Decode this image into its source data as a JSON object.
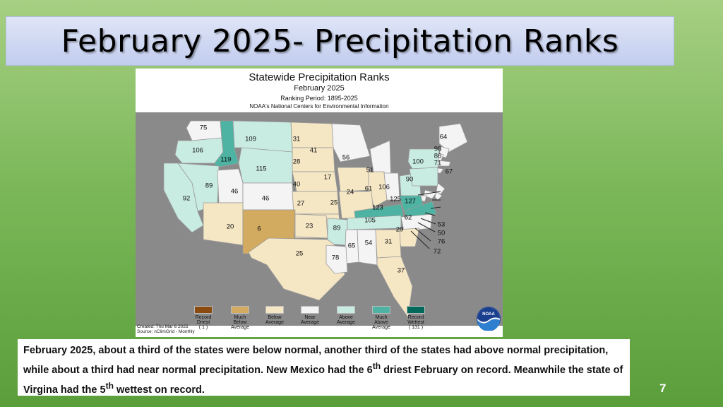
{
  "slide": {
    "title": "February 2025- Precipitation Ranks",
    "page_number": "7"
  },
  "map": {
    "title": "Statewide Precipitation Ranks",
    "subtitle": "February 2025",
    "period": "Ranking Period: 1895-2025",
    "source_line": "NOAA's National Centers for Environmental Information",
    "created": "Created: Thu Mar  6 2025",
    "source": "Source: nClimGrid - Monthly",
    "colors": {
      "record_driest": "#8b4a10",
      "much_below": "#d2aa60",
      "below": "#f5e6c4",
      "near": "#f4f4f4",
      "above": "#c9ece2",
      "much_above": "#4eb3a2",
      "record_wettest": "#00695c",
      "background": "#8a8a8a"
    },
    "legend": [
      {
        "label": "Record Driest",
        "sub": "( 1 )",
        "color": "#8b4a10"
      },
      {
        "label": "Much Below Average",
        "sub": "",
        "color": "#d2aa60"
      },
      {
        "label": "Below Average",
        "sub": "",
        "color": "#f5e6c4"
      },
      {
        "label": "Near Average",
        "sub": "",
        "color": "#f4f4f4"
      },
      {
        "label": "Above Average",
        "sub": "",
        "color": "#c9ece2"
      },
      {
        "label": "Much Above Average",
        "sub": "",
        "color": "#4eb3a2"
      },
      {
        "label": "Record Wettest",
        "sub": "( 131 )",
        "color": "#00695c"
      }
    ],
    "states": [
      {
        "label": "75",
        "category": "near"
      },
      {
        "label": "106",
        "category": "above"
      },
      {
        "label": "119",
        "category": "much_above"
      },
      {
        "label": "109",
        "category": "above"
      },
      {
        "label": "31",
        "category": "below"
      },
      {
        "label": "41",
        "category": "below"
      },
      {
        "label": "28",
        "category": "below"
      },
      {
        "label": "115",
        "category": "above"
      },
      {
        "label": "56",
        "category": "near"
      },
      {
        "label": "51",
        "category": "near"
      },
      {
        "label": "64",
        "category": "near"
      },
      {
        "label": "98",
        "category": "near"
      },
      {
        "label": "86",
        "category": "near"
      },
      {
        "label": "71",
        "category": "near"
      },
      {
        "label": "100",
        "category": "above"
      },
      {
        "label": "67",
        "category": "near"
      },
      {
        "label": "89",
        "category": "above"
      },
      {
        "label": "92",
        "category": "above"
      },
      {
        "label": "46",
        "category": "near"
      },
      {
        "label": "46",
        "category": "near"
      },
      {
        "label": "40",
        "category": "below"
      },
      {
        "label": "17",
        "category": "below"
      },
      {
        "label": "24",
        "category": "below"
      },
      {
        "label": "61",
        "category": "near"
      },
      {
        "label": "106",
        "category": "above"
      },
      {
        "label": "90",
        "category": "above"
      },
      {
        "label": "53",
        "category": "near"
      },
      {
        "label": "50",
        "category": "near"
      },
      {
        "label": "76",
        "category": "near"
      },
      {
        "label": "72",
        "category": "near"
      },
      {
        "label": "27",
        "category": "below"
      },
      {
        "label": "25",
        "category": "below"
      },
      {
        "label": "125",
        "category": "much_above"
      },
      {
        "label": "127",
        "category": "much_above"
      },
      {
        "label": "123",
        "category": "much_above"
      },
      {
        "label": "20",
        "category": "below"
      },
      {
        "label": "6",
        "category": "much_below"
      },
      {
        "label": "23",
        "category": "below"
      },
      {
        "label": "89",
        "category": "above"
      },
      {
        "label": "105",
        "category": "above"
      },
      {
        "label": "62",
        "category": "near"
      },
      {
        "label": "29",
        "category": "below"
      },
      {
        "label": "65",
        "category": "near"
      },
      {
        "label": "54",
        "category": "near"
      },
      {
        "label": "31",
        "category": "below"
      },
      {
        "label": "25",
        "category": "below"
      },
      {
        "label": "78",
        "category": "near"
      },
      {
        "label": "37",
        "category": "below"
      }
    ]
  },
  "caption": {
    "part1": "February 2025, about a third of the states were below normal, another third of the states had above normal precipitation, while about a third had near normal precipitation. New Mexico had the 6",
    "sup1": "th",
    "part2": " driest February on record. Meanwhile the state of Virgina had the 5",
    "sup2": "th",
    "part3": " wettest on record."
  }
}
